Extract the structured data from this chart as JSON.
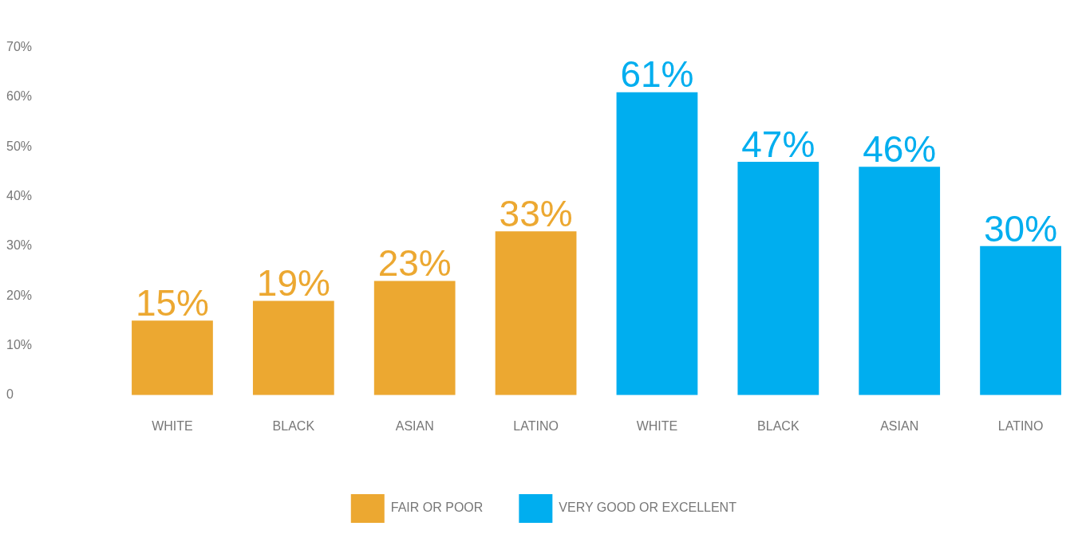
{
  "chart_data": {
    "type": "bar",
    "categories": [
      "WHITE",
      "BLACK",
      "ASIAN",
      "LATINO",
      "WHITE",
      "BLACK",
      "ASIAN",
      "LATINO"
    ],
    "series": [
      {
        "name": "FAIR OR POOR",
        "color": "#eca831",
        "values": [
          15,
          19,
          23,
          33,
          null,
          null,
          null,
          null
        ],
        "value_labels": [
          "15%",
          "19%",
          "23%",
          "33%",
          null,
          null,
          null,
          null
        ]
      },
      {
        "name": "VERY GOOD OR EXCELLENT",
        "color": "#00aeef",
        "values": [
          null,
          null,
          null,
          null,
          61,
          47,
          46,
          30
        ],
        "value_labels": [
          null,
          null,
          null,
          null,
          "61%",
          "47%",
          "46%",
          "30%"
        ]
      }
    ],
    "ylim": [
      0,
      70
    ],
    "yticks": [
      0,
      {
        "value": 10,
        "label": "10%"
      },
      {
        "value": 20,
        "label": "20%"
      },
      {
        "value": 30,
        "label": "30%"
      },
      {
        "value": 40,
        "label": "40%"
      },
      {
        "value": 50,
        "label": "50%"
      },
      {
        "value": 60,
        "label": "60%"
      },
      {
        "value": 70,
        "label": "70%"
      }
    ],
    "grid": false,
    "legend": "bottom"
  }
}
